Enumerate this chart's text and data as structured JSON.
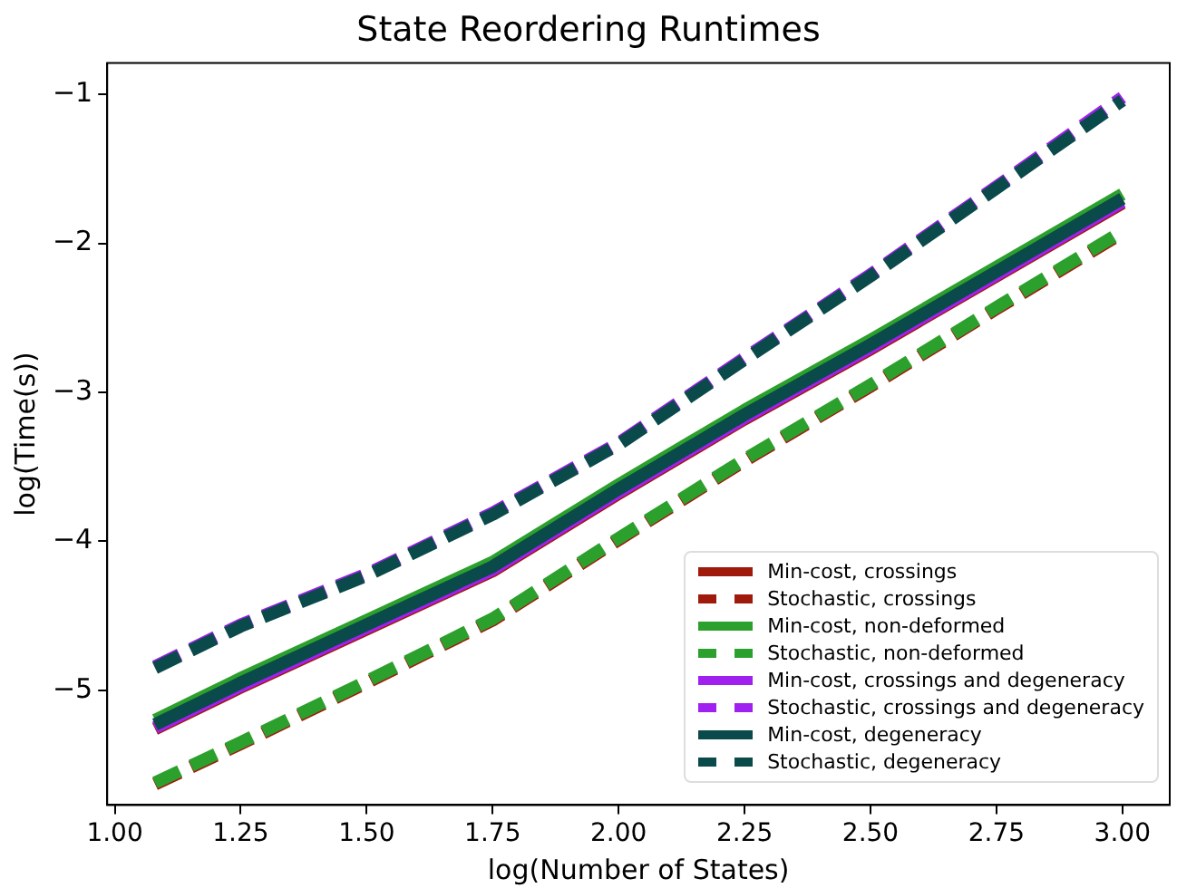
{
  "chart_data": {
    "type": "line",
    "title": "State Reordering Runtimes",
    "xlabel": "log(Number of States)",
    "ylabel": "log(Time(s))",
    "x": [
      1.08,
      1.25,
      1.5,
      1.75,
      2.0,
      2.25,
      2.5,
      2.75,
      3.0
    ],
    "xlim": [
      0.985,
      3.094
    ],
    "ylim": [
      -5.77,
      -0.79
    ],
    "xticks": [
      {
        "value": 1,
        "label": "1.00"
      },
      {
        "value": 1.25,
        "label": "1.25"
      },
      {
        "value": 1.5,
        "label": "1.50"
      },
      {
        "value": 1.75,
        "label": "1.75"
      },
      {
        "value": 2,
        "label": "2.00"
      },
      {
        "value": 2.25,
        "label": "2.25"
      },
      {
        "value": 2.5,
        "label": "2.50"
      },
      {
        "value": 2.75,
        "label": "2.75"
      },
      {
        "value": 3,
        "label": "3.00"
      }
    ],
    "yticks": [
      {
        "value": -1,
        "label": "−1"
      },
      {
        "value": -2,
        "label": "−2"
      },
      {
        "value": -3,
        "label": "−3"
      },
      {
        "value": -4,
        "label": "−4"
      },
      {
        "value": -5,
        "label": "−5"
      }
    ],
    "grid": false,
    "legend": "bottom right",
    "marker": "none",
    "series": [
      {
        "name": "Min-cost, crossings",
        "color": "#a01a0c",
        "line_style": "solid",
        "values": [
          -5.26,
          -4.98,
          -4.59,
          -4.2,
          -3.68,
          -3.18,
          -2.71,
          -2.22,
          -1.73
        ]
      },
      {
        "name": "Stochastic, crossings",
        "color": "#a01a0c",
        "line_style": "dashed",
        "values": [
          -5.63,
          -5.36,
          -4.95,
          -4.53,
          -3.99,
          -3.46,
          -2.96,
          -2.44,
          -1.93
        ]
      },
      {
        "name": "Min-cost, non-deformed",
        "color": "#2ca02c",
        "line_style": "solid",
        "values": [
          -5.2,
          -4.92,
          -4.53,
          -4.14,
          -3.62,
          -3.12,
          -2.65,
          -2.16,
          -1.67
        ]
      },
      {
        "name": "Stochastic, non-deformed",
        "color": "#2ca02c",
        "line_style": "dashed",
        "values": [
          -5.62,
          -5.35,
          -4.94,
          -4.52,
          -3.98,
          -3.45,
          -2.95,
          -2.43,
          -1.92
        ]
      },
      {
        "name": "Min-cost, crossings and degeneracy",
        "color": "#a020f0",
        "line_style": "solid",
        "values": [
          -5.25,
          -4.97,
          -4.58,
          -4.19,
          -3.67,
          -3.17,
          -2.7,
          -2.21,
          -1.72
        ]
      },
      {
        "name": "Stochastic, crossings and degeneracy",
        "color": "#a020f0",
        "line_style": "dashed",
        "values": [
          -4.84,
          -4.56,
          -4.22,
          -3.81,
          -3.34,
          -2.77,
          -2.21,
          -1.62,
          -1.02
        ]
      },
      {
        "name": "Min-cost, degeneracy",
        "color": "#0b4a4a",
        "line_style": "solid",
        "values": [
          -5.23,
          -4.95,
          -4.56,
          -4.17,
          -3.65,
          -3.15,
          -2.68,
          -2.19,
          -1.7
        ]
      },
      {
        "name": "Stochastic, degeneracy",
        "color": "#0b4a4a",
        "line_style": "dashed",
        "values": [
          -4.85,
          -4.57,
          -4.23,
          -3.82,
          -3.35,
          -2.78,
          -2.22,
          -1.63,
          -1.04
        ]
      }
    ]
  }
}
